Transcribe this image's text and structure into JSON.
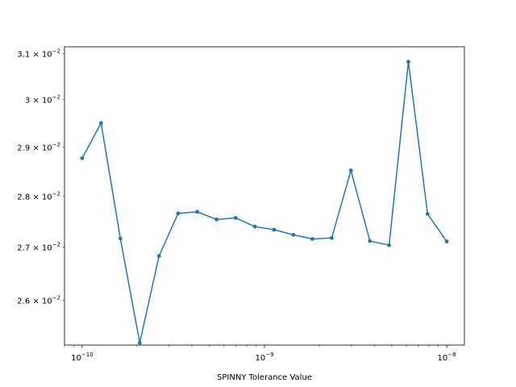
{
  "chart_data": {
    "type": "line",
    "title": "",
    "xlabel": "SPINNY Tolerance Value",
    "ylabel": "",
    "xscale": "log",
    "yscale": "log",
    "xlim": [
      8e-11,
      1.25e-08
    ],
    "ylim": [
      0.02518,
      0.03115
    ],
    "grid": false,
    "legend": "none",
    "line_color": "#1f77b4",
    "x_ticks": [
      {
        "value": 1e-10,
        "base": "10",
        "exp": "−10"
      },
      {
        "value": 1e-09,
        "base": "10",
        "exp": "−9"
      },
      {
        "value": 1e-08,
        "base": "10",
        "exp": "−8"
      }
    ],
    "y_ticks": [
      {
        "value": 0.026,
        "mant": "2.6 × 10",
        "exp": "−2"
      },
      {
        "value": 0.027,
        "mant": "2.7 × 10",
        "exp": "−2"
      },
      {
        "value": 0.028,
        "mant": "2.8 × 10",
        "exp": "−2"
      },
      {
        "value": 0.029,
        "mant": "2.9 × 10",
        "exp": "−2"
      },
      {
        "value": 0.03,
        "mant": "3 × 10",
        "exp": "−2"
      },
      {
        "value": 0.031,
        "mant": "3.1 × 10",
        "exp": "−2"
      }
    ],
    "series": [
      {
        "x": [
          1e-10,
          1.27e-10,
          1.62e-10,
          2.07e-10,
          2.64e-10,
          3.36e-10,
          4.28e-10,
          5.46e-10,
          6.95e-10,
          8.86e-10,
          1.13e-09,
          1.44e-09,
          1.83e-09,
          2.34e-09,
          2.98e-09,
          3.79e-09,
          4.83e-09,
          6.16e-09,
          7.85e-09,
          1e-08
        ],
        "y": [
          0.02877,
          0.0295,
          0.02717,
          0.02522,
          0.02683,
          0.02766,
          0.02769,
          0.02754,
          0.02757,
          0.0274,
          0.02734,
          0.02724,
          0.02716,
          0.02718,
          0.02852,
          0.02712,
          0.02704,
          0.03082,
          0.02765,
          0.02711
        ]
      }
    ]
  }
}
